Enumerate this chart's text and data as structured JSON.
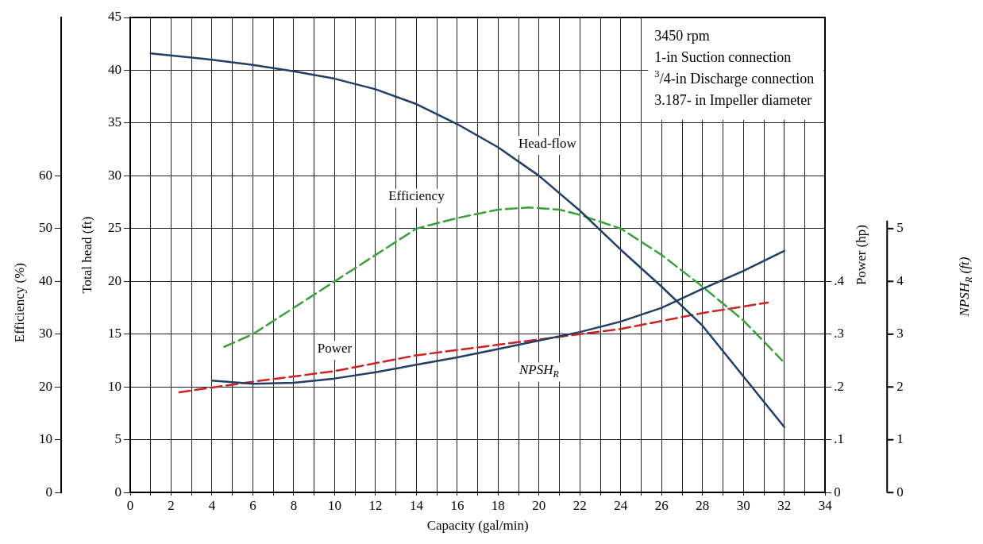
{
  "chart_data": [
    {
      "type": "line",
      "xlabel": "Capacity (gal/min)",
      "ylabel": "Total head (ft)",
      "y2label": "Efficiency (%)",
      "y3label": "Power (hp)",
      "xlim": [
        0,
        34
      ],
      "xticks": [
        0,
        {
          "value": 1,
          "label": null
        },
        2,
        {
          "value": 3,
          "label": null
        },
        4,
        {
          "value": 5,
          "label": null
        },
        6,
        {
          "value": 7,
          "label": null
        },
        8,
        {
          "value": 9,
          "label": null
        },
        10,
        {
          "value": 11,
          "label": null
        },
        12,
        {
          "value": 13,
          "label": null
        },
        14,
        {
          "value": 15,
          "label": null
        },
        16,
        {
          "value": 17,
          "label": null
        },
        18,
        {
          "value": 19,
          "label": null
        },
        20,
        {
          "value": 21,
          "label": null
        },
        22,
        {
          "value": 23,
          "label": null
        },
        24,
        {
          "value": 25,
          "label": null
        },
        26,
        {
          "value": 27,
          "label": null
        },
        28,
        {
          "value": 29,
          "label": null
        },
        30,
        {
          "value": 31,
          "label": null
        },
        32,
        {
          "value": 33,
          "label": null
        },
        34
      ],
      "ylim": [
        0,
        45
      ],
      "yticks": [
        0,
        5,
        10,
        15,
        20,
        25,
        30,
        35,
        40,
        45
      ],
      "y2lim": [
        0,
        90
      ],
      "y2ticks": [
        0,
        10,
        20,
        30,
        40,
        50,
        60
      ],
      "y3lim": [
        0,
        0.9
      ],
      "y3ticks": [
        0,
        {
          "value": 0.1,
          "label": ".1"
        },
        {
          "value": 0.2,
          "label": ".2"
        },
        {
          "value": 0.3,
          "label": ".3"
        },
        {
          "value": 0.4,
          "label": ".4"
        }
      ],
      "grid": true,
      "marker": "none",
      "annotations": [
        "3450 rpm",
        "1-in Suction connection",
        "$^{3}$/4-in Discharge connection",
        "3.187- in Impeller diameter"
      ],
      "series": [
        {
          "name": "Head-flow",
          "color": "#1f3f66",
          "line_style": "solid",
          "x": [
            1,
            4,
            6,
            8,
            10,
            12,
            14,
            16,
            18,
            20,
            22,
            24,
            26,
            28,
            30,
            32
          ],
          "values": [
            41.6,
            41.0,
            40.5,
            39.9,
            39.2,
            38.2,
            36.8,
            34.9,
            32.7,
            30.0,
            26.7,
            23.0,
            19.5,
            15.8,
            11.0,
            6.2
          ]
        },
        {
          "name": "Efficiency",
          "color": "#3aa03a",
          "line_style": "dashed",
          "axis": "y2",
          "x": [
            4.6,
            6,
            8,
            10,
            12,
            14,
            16,
            18,
            19.5,
            21,
            22,
            24,
            26,
            28,
            30,
            31.9
          ],
          "values": [
            27.6,
            30,
            35,
            40,
            45,
            50,
            52,
            53.6,
            54,
            53.6,
            52.6,
            50,
            45,
            39,
            32.6,
            25
          ]
        },
        {
          "name": "Power",
          "color": "#cc2222",
          "line_style": "dashed",
          "axis": "y3",
          "x": [
            2.4,
            6,
            10,
            14,
            18,
            22,
            24,
            28,
            31.2
          ],
          "values": [
            0.19,
            0.21,
            0.23,
            0.26,
            0.28,
            0.3,
            0.31,
            0.34,
            0.36
          ]
        }
      ]
    },
    {
      "type": "line",
      "ylabel": "NPSH$_{R}$ (ft)",
      "xlim": [
        0,
        34
      ],
      "ylim": [
        0,
        9
      ],
      "yticks": [
        0,
        1,
        2,
        3,
        4,
        5
      ],
      "tick_labels": "y",
      "marker": "none",
      "series": [
        {
          "name": "NPSH$_{R}$",
          "color": "#1f3f66",
          "line_style": "solid",
          "x": [
            4,
            6,
            8,
            10,
            12,
            14,
            16,
            18,
            20,
            22,
            24,
            26,
            28,
            30,
            32
          ],
          "values": [
            2.12,
            2.06,
            2.08,
            2.16,
            2.28,
            2.42,
            2.56,
            2.72,
            2.88,
            3.04,
            3.24,
            3.5,
            3.86,
            4.2,
            4.58
          ]
        }
      ]
    }
  ]
}
